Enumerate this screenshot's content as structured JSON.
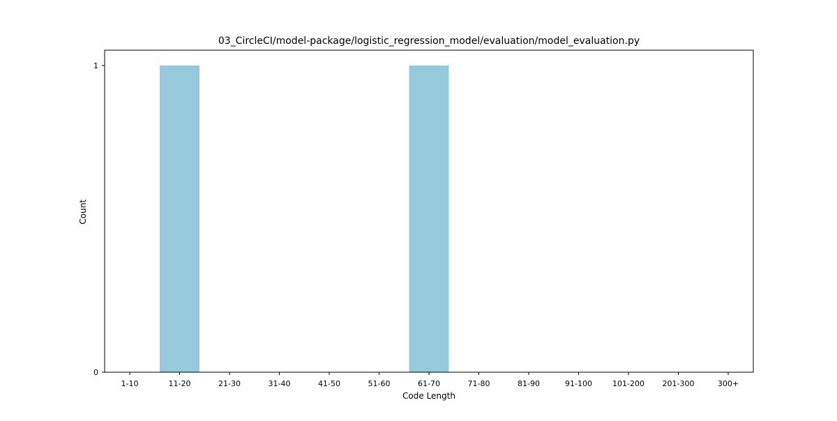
{
  "chart_data": {
    "type": "bar",
    "title": "03_CircleCI/model-package/logistic_regression_model/evaluation/model_evaluation.py",
    "xlabel": "Code Length",
    "ylabel": "Count",
    "categories": [
      "1-10",
      "11-20",
      "21-30",
      "31-40",
      "41-50",
      "51-60",
      "61-70",
      "71-80",
      "81-90",
      "91-100",
      "101-200",
      "201-300",
      "300+"
    ],
    "values": [
      0,
      1,
      0,
      0,
      0,
      0,
      1,
      0,
      0,
      0,
      0,
      0,
      0
    ],
    "ylim": [
      0,
      1
    ],
    "yticks": [
      0,
      1
    ],
    "grid": false,
    "legend": "none",
    "bar_color": "#96c9dc"
  }
}
